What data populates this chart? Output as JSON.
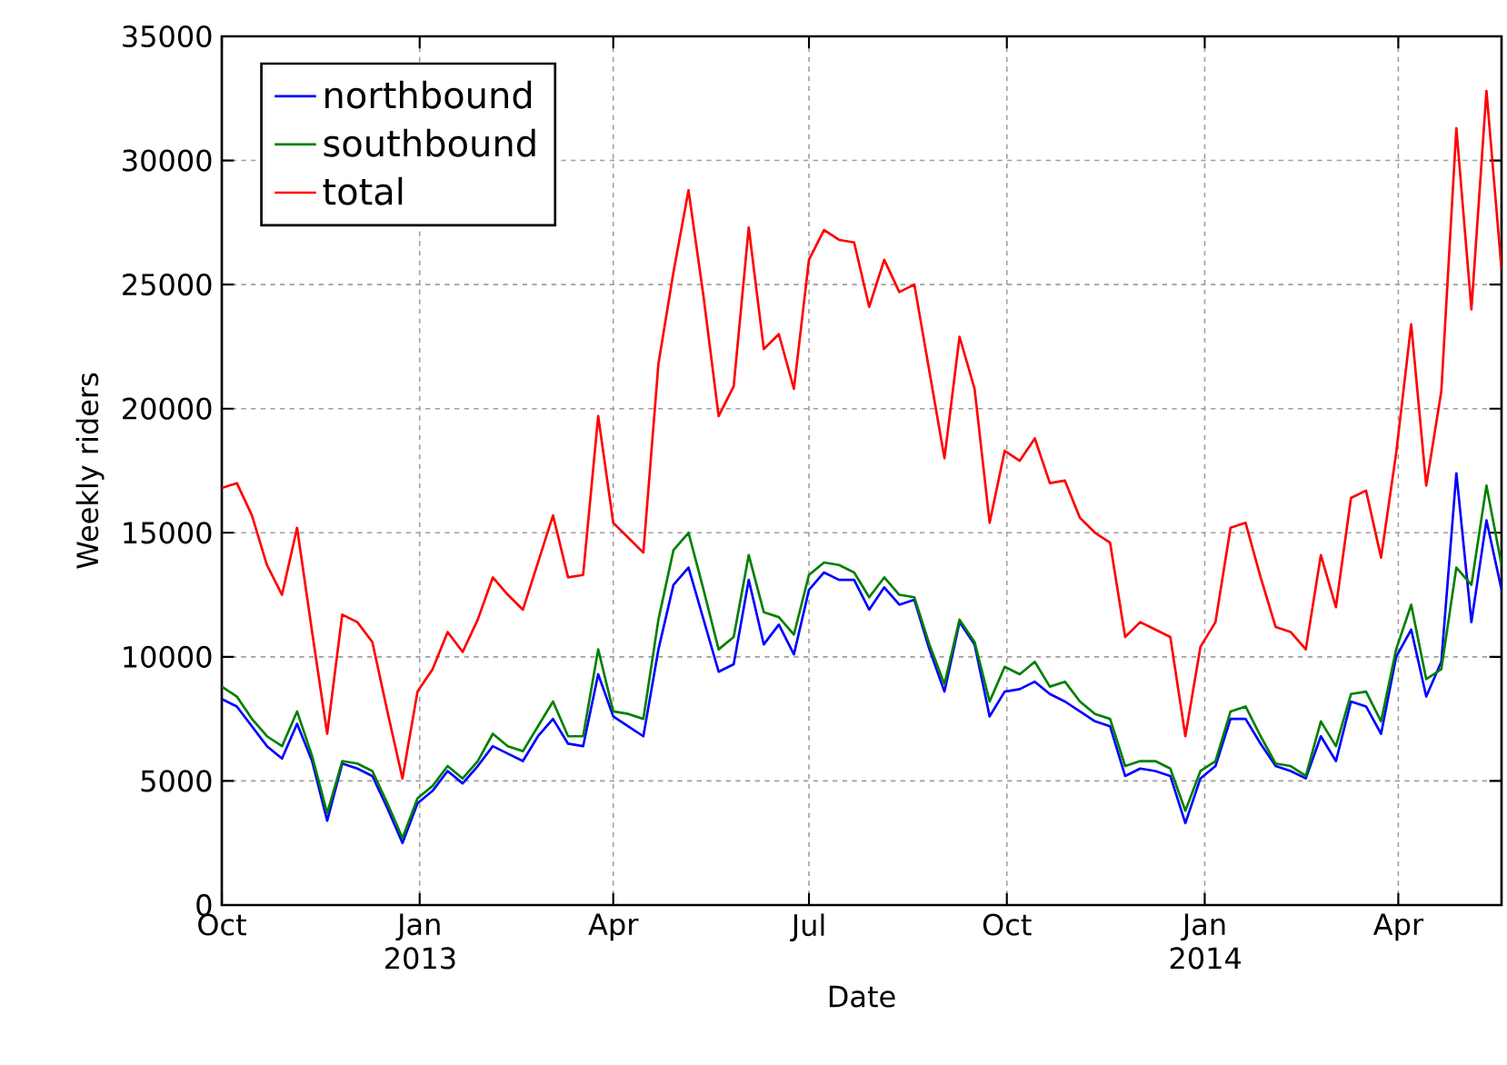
{
  "chart_data": {
    "type": "line",
    "xlabel": "Date",
    "ylabel": "Weekly riders",
    "x": [
      "2012-10-01",
      "2012-10-08",
      "2012-10-15",
      "2012-10-22",
      "2012-10-29",
      "2012-11-05",
      "2012-11-12",
      "2012-11-19",
      "2012-11-26",
      "2012-12-03",
      "2012-12-10",
      "2012-12-17",
      "2012-12-24",
      "2012-12-31",
      "2013-01-07",
      "2013-01-14",
      "2013-01-21",
      "2013-01-28",
      "2013-02-04",
      "2013-02-11",
      "2013-02-18",
      "2013-02-25",
      "2013-03-04",
      "2013-03-11",
      "2013-03-18",
      "2013-03-25",
      "2013-04-01",
      "2013-04-08",
      "2013-04-15",
      "2013-04-22",
      "2013-04-29",
      "2013-05-06",
      "2013-05-13",
      "2013-05-20",
      "2013-05-27",
      "2013-06-03",
      "2013-06-10",
      "2013-06-17",
      "2013-06-24",
      "2013-07-01",
      "2013-07-08",
      "2013-07-15",
      "2013-07-22",
      "2013-07-29",
      "2013-08-05",
      "2013-08-12",
      "2013-08-19",
      "2013-08-26",
      "2013-09-02",
      "2013-09-09",
      "2013-09-16",
      "2013-09-23",
      "2013-09-30",
      "2013-10-07",
      "2013-10-14",
      "2013-10-21",
      "2013-10-28",
      "2013-11-04",
      "2013-11-11",
      "2013-11-18",
      "2013-11-25",
      "2013-12-02",
      "2013-12-09",
      "2013-12-16",
      "2013-12-23",
      "2013-12-30",
      "2014-01-06",
      "2014-01-13",
      "2014-01-20",
      "2014-01-27",
      "2014-02-03",
      "2014-02-10",
      "2014-02-17",
      "2014-02-24",
      "2014-03-03",
      "2014-03-10",
      "2014-03-17",
      "2014-03-24",
      "2014-03-31",
      "2014-04-07",
      "2014-04-14",
      "2014-04-21",
      "2014-04-28",
      "2014-05-05",
      "2014-05-12",
      "2014-05-19"
    ],
    "series": [
      {
        "name": "northbound",
        "color": "#0000ff",
        "values": [
          8300,
          8000,
          7200,
          6400,
          5900,
          7300,
          5800,
          3400,
          5700,
          5500,
          5200,
          3900,
          2500,
          4100,
          4600,
          5400,
          4900,
          5600,
          6400,
          6100,
          5800,
          6800,
          7500,
          6500,
          6400,
          9300,
          7600,
          7200,
          6800,
          10300,
          12900,
          13600,
          11500,
          9400,
          9700,
          13100,
          10500,
          11300,
          10100,
          12700,
          13400,
          13100,
          13100,
          11900,
          12800,
          12100,
          12300,
          10300,
          8600,
          11400,
          10500,
          7600,
          8600,
          8700,
          9000,
          8500,
          8200,
          7800,
          7400,
          7200,
          5200,
          5500,
          5400,
          5200,
          3300,
          5100,
          5600,
          7500,
          7500,
          6500,
          5600,
          5400,
          5100,
          6800,
          5800,
          8200,
          8000,
          6900,
          10000,
          11100,
          8400,
          9800,
          17400,
          11400,
          15500,
          12700
        ]
      },
      {
        "name": "southbound",
        "color": "#008000",
        "values": [
          8800,
          8400,
          7500,
          6800,
          6400,
          7800,
          6000,
          3700,
          5800,
          5700,
          5400,
          4100,
          2700,
          4300,
          4800,
          5600,
          5100,
          5800,
          6900,
          6400,
          6200,
          7200,
          8200,
          6800,
          6800,
          10300,
          7800,
          7700,
          7500,
          11500,
          14300,
          15000,
          12700,
          10300,
          10800,
          14100,
          11800,
          11600,
          10900,
          13300,
          13800,
          13700,
          13400,
          12400,
          13200,
          12500,
          12400,
          10500,
          8900,
          11500,
          10600,
          8200,
          9600,
          9300,
          9800,
          8800,
          9000,
          8200,
          7700,
          7500,
          5600,
          5800,
          5800,
          5500,
          3800,
          5400,
          5800,
          7800,
          8000,
          6800,
          5700,
          5600,
          5200,
          7400,
          6400,
          8500,
          8600,
          7400,
          10300,
          12100,
          9100,
          9500,
          13600,
          12900,
          16900,
          13700
        ]
      },
      {
        "name": "total",
        "color": "#ff0000",
        "values": [
          16800,
          17000,
          15700,
          13700,
          12500,
          15200,
          11000,
          6900,
          11700,
          11400,
          10600,
          7800,
          5100,
          8600,
          9500,
          11000,
          10200,
          11500,
          13200,
          12500,
          11900,
          13800,
          15700,
          13200,
          13300,
          19700,
          15400,
          14800,
          14200,
          21800,
          25500,
          28800,
          24500,
          19700,
          20900,
          27300,
          22400,
          23000,
          20800,
          26000,
          27200,
          26800,
          26700,
          24100,
          26000,
          24700,
          25000,
          21500,
          18000,
          22900,
          20800,
          15400,
          18300,
          17900,
          18800,
          17000,
          17100,
          15600,
          15000,
          14600,
          10800,
          11400,
          11100,
          10800,
          6800,
          10400,
          11400,
          15200,
          15400,
          13200,
          11200,
          11000,
          10300,
          14100,
          12000,
          16400,
          16700,
          14000,
          18200,
          23400,
          16900,
          20700,
          31300,
          24000,
          32800,
          25600
        ]
      }
    ],
    "xlim": [
      "2012-10-01",
      "2014-05-19"
    ],
    "xticks": [
      {
        "value": "2012-10-01",
        "label": "Oct"
      },
      {
        "value": "2013-01-01",
        "label": "Jan 2013"
      },
      {
        "value": "2013-04-01",
        "label": "Apr"
      },
      {
        "value": "2013-07-01",
        "label": "Jul"
      },
      {
        "value": "2013-10-01",
        "label": "Oct"
      },
      {
        "value": "2014-01-01",
        "label": "Jan 2014"
      },
      {
        "value": "2014-04-01",
        "label": "Apr"
      }
    ],
    "ylim": [
      0,
      35000
    ],
    "yticks": [
      0,
      5000,
      10000,
      15000,
      20000,
      25000,
      30000,
      35000
    ],
    "grid": true,
    "legend": "top left"
  }
}
